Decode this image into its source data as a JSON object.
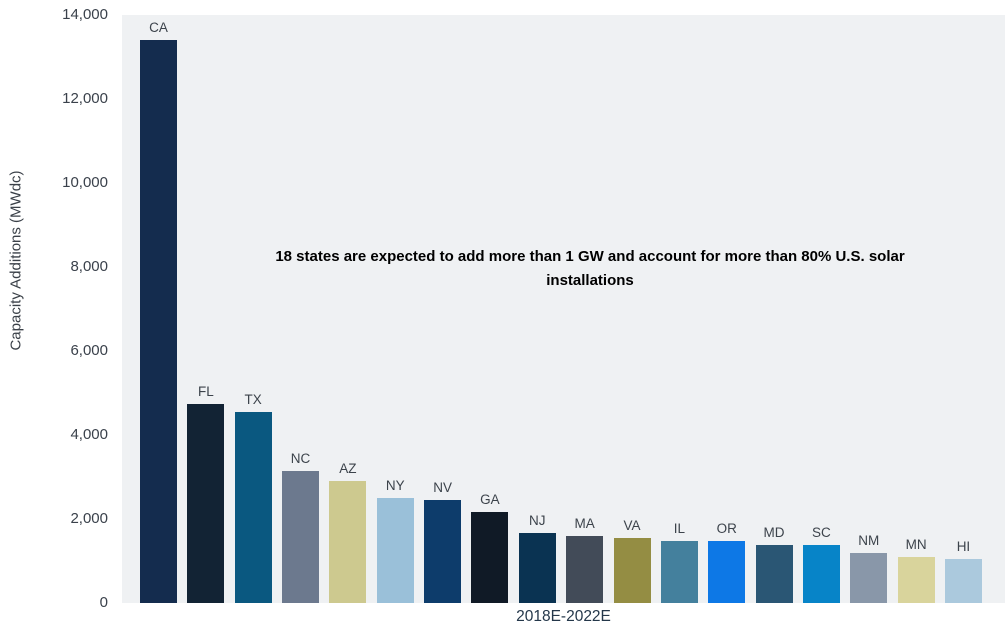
{
  "chart": {
    "ylabel": "Capacity Additions (MWdc)",
    "xlabel": "2018E-2022E",
    "annotation": "18 states are expected to add more than 1 GW and account for more than 80% U.S. solar installations"
  },
  "chart_data": {
    "type": "bar",
    "title": "",
    "annotation": "18 states are expected to add more than 1 GW and account for more than 80% U.S. solar installations",
    "categories": [
      "CA",
      "FL",
      "TX",
      "NC",
      "AZ",
      "NY",
      "NV",
      "GA",
      "NJ",
      "MA",
      "VA",
      "IL",
      "OR",
      "MD",
      "SC",
      "NM",
      "MN",
      "HI"
    ],
    "values": [
      13400,
      4750,
      4550,
      3150,
      2900,
      2500,
      2450,
      2170,
      1670,
      1600,
      1550,
      1480,
      1470,
      1390,
      1380,
      1190,
      1100,
      1050
    ],
    "bar_colors": [
      "#142c4e",
      "#122334",
      "#0a5880",
      "#6c798e",
      "#cdc98f",
      "#9ac0d9",
      "#0d3c6b",
      "#101a26",
      "#0a3352",
      "#424b58",
      "#948d43",
      "#44809d",
      "#0d78e6",
      "#2a5674",
      "#0784c8",
      "#8997a9",
      "#d9d49c",
      "#abc9dd"
    ],
    "xlabel": "2018E-2022E",
    "ylabel": "Capacity Additions (MWdc)",
    "ylim": [
      0,
      14000
    ],
    "yticks": [
      0,
      2000,
      4000,
      6000,
      8000,
      10000,
      12000,
      14000
    ],
    "ytick_labels": [
      "0",
      "2,000",
      "4,000",
      "6,000",
      "8,000",
      "10,000",
      "12,000",
      "14,000"
    ],
    "grid": false,
    "legend": "none",
    "plot_bg": "#eff1f3",
    "label_color": "#3c434b"
  }
}
